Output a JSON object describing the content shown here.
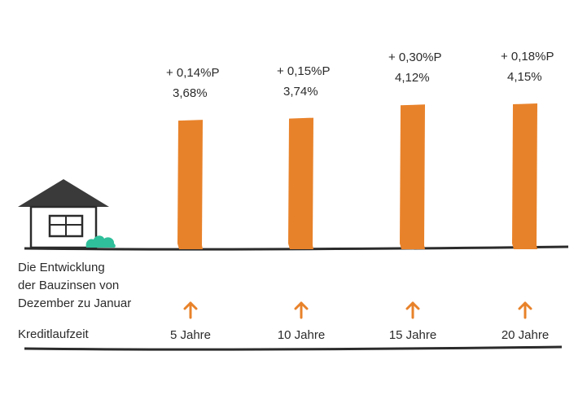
{
  "chart_data": {
    "type": "bar",
    "title": "Die Entwicklung der Bauzinsen von Dezember zu Januar",
    "description_lines": [
      "Die Entwicklung",
      "der Bauzinsen von",
      "Dezember zu Januar"
    ],
    "xlabel": "Kreditlaufzeit",
    "categories": [
      "5 Jahre",
      "10 Jahre",
      "15 Jahre",
      "20 Jahre"
    ],
    "values": [
      3.68,
      3.74,
      4.12,
      4.15
    ],
    "value_labels": [
      "3,68%",
      "3,74%",
      "4,12%",
      "4,15%"
    ],
    "change_labels": [
      "+  0,14%P",
      "+ 0,15%P",
      "+ 0,30%P",
      "+ 0,18%P"
    ],
    "trend": [
      "up",
      "up",
      "up",
      "up"
    ],
    "ylim": [
      0,
      4.15
    ],
    "colors": {
      "bar": "#e8822a",
      "arrow": "#e8822a",
      "bush": "#2fbf9a",
      "ink": "#2b2b2b"
    }
  }
}
